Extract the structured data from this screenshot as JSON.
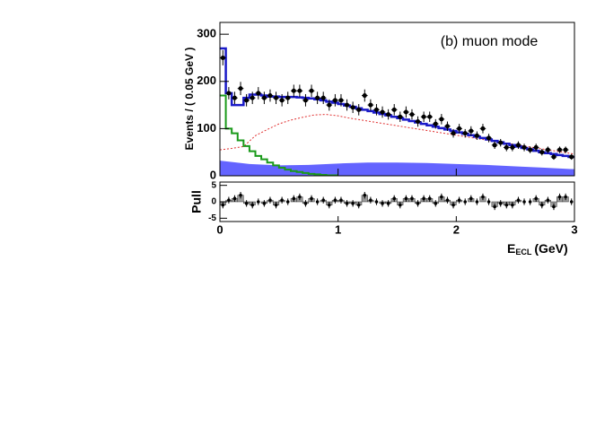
{
  "chart_data": {
    "type": "fit-histogram",
    "annotation": "(b) muon mode",
    "y_label": "Events / ( 0.05 GeV )",
    "x_label": {
      "main": "E",
      "sub": "ECL",
      "unit": "(GeV)"
    },
    "pull_label": "Pull",
    "xlim": [
      0,
      3
    ],
    "xticks": [
      0,
      1,
      2,
      3
    ],
    "ylim": [
      0,
      325
    ],
    "yticks": [
      0,
      100,
      200,
      300
    ],
    "pull_ylim": [
      -6,
      6
    ],
    "pull_yticks": [
      -5,
      0,
      5
    ],
    "x": [
      0.025,
      0.075,
      0.125,
      0.175,
      0.225,
      0.275,
      0.325,
      0.375,
      0.425,
      0.475,
      0.525,
      0.575,
      0.625,
      0.675,
      0.725,
      0.775,
      0.825,
      0.875,
      0.925,
      0.975,
      1.025,
      1.075,
      1.125,
      1.175,
      1.225,
      1.275,
      1.325,
      1.375,
      1.425,
      1.475,
      1.525,
      1.575,
      1.625,
      1.675,
      1.725,
      1.775,
      1.825,
      1.875,
      1.925,
      1.975,
      2.025,
      2.075,
      2.125,
      2.175,
      2.225,
      2.275,
      2.325,
      2.375,
      2.425,
      2.475,
      2.525,
      2.575,
      2.625,
      2.675,
      2.725,
      2.775,
      2.825,
      2.875,
      2.925,
      2.975
    ],
    "data": {
      "color": "#000000",
      "values": [
        250,
        175,
        165,
        185,
        160,
        165,
        175,
        165,
        170,
        165,
        160,
        165,
        180,
        180,
        160,
        180,
        165,
        165,
        150,
        160,
        160,
        150,
        145,
        140,
        170,
        150,
        140,
        135,
        130,
        140,
        125,
        135,
        130,
        115,
        125,
        125,
        110,
        120,
        105,
        90,
        100,
        90,
        95,
        85,
        100,
        80,
        65,
        70,
        60,
        60,
        65,
        60,
        55,
        60,
        50,
        55,
        40,
        55,
        55,
        40
      ],
      "errors": [
        16,
        13,
        13,
        14,
        13,
        13,
        13,
        13,
        13,
        13,
        13,
        13,
        13,
        13,
        13,
        13,
        13,
        13,
        12,
        13,
        13,
        12,
        12,
        12,
        13,
        12,
        12,
        12,
        11,
        12,
        11,
        12,
        11,
        11,
        11,
        11,
        10,
        11,
        10,
        9,
        10,
        9,
        10,
        9,
        10,
        9,
        8,
        8,
        8,
        8,
        8,
        8,
        7,
        8,
        7,
        7,
        6,
        7,
        7,
        6
      ]
    },
    "total": {
      "color": "#1a1ac8",
      "values": [
        270,
        175,
        150,
        150,
        165,
        172,
        172,
        170,
        168,
        168,
        167,
        167,
        167,
        166,
        165,
        164,
        162,
        160,
        157,
        155,
        152,
        149,
        146,
        143,
        140,
        137,
        134,
        131,
        128,
        125,
        122,
        119,
        116,
        113,
        110,
        107,
        104,
        101,
        98,
        95,
        92,
        89,
        86,
        83,
        80,
        77,
        74,
        71,
        68,
        65,
        62,
        59,
        56,
        53,
        50,
        48,
        46,
        44,
        42,
        40
      ]
    },
    "peaking": {
      "color": "#1a9a1a",
      "x": [
        0.025,
        0.075,
        0.125,
        0.175,
        0.225,
        0.275,
        0.325,
        0.375,
        0.425,
        0.475,
        0.525,
        0.575,
        0.625,
        0.675,
        0.725,
        0.775,
        0.825,
        0.875,
        0.925,
        0.975
      ],
      "values": [
        170,
        100,
        90,
        75,
        63,
        52,
        42,
        35,
        28,
        22,
        17,
        13,
        10,
        8,
        6,
        4,
        3,
        2,
        1,
        1
      ]
    },
    "dashed": {
      "color": "#e03030",
      "x": [
        0,
        0.1,
        0.2,
        0.3,
        0.4,
        0.5,
        0.6,
        0.7,
        0.8,
        0.9,
        1.0,
        1.1,
        1.2,
        1.3,
        1.4,
        1.5,
        1.6,
        1.7,
        1.8,
        1.9,
        2.0,
        2.1,
        2.2,
        2.3,
        2.4,
        2.5,
        2.6,
        2.7,
        2.8,
        2.9,
        3.0
      ],
      "values": [
        55,
        58,
        62,
        85,
        98,
        110,
        118,
        124,
        129,
        130,
        127,
        122,
        118,
        114,
        110,
        106,
        102,
        98,
        94,
        90,
        86,
        82,
        78,
        74,
        70,
        66,
        62,
        58,
        54,
        50,
        46
      ]
    },
    "filled": {
      "color": "#6464ff",
      "x": [
        0,
        0.25,
        0.5,
        0.75,
        1.0,
        1.25,
        1.5,
        1.75,
        2.0,
        2.25,
        2.5,
        2.75,
        3.0
      ],
      "values": [
        32,
        25,
        22,
        23,
        26,
        28,
        28,
        27,
        25,
        23,
        20,
        17,
        14
      ]
    },
    "pull": {
      "color": "#999999",
      "values": [
        -1,
        0.5,
        1,
        2,
        -0.5,
        -1,
        0,
        -0.5,
        0.5,
        -1,
        0.5,
        0,
        1,
        1.5,
        -0.5,
        1,
        0,
        0.5,
        -1,
        0.5,
        0.5,
        -0.5,
        -0.5,
        -1,
        2,
        0.5,
        0,
        -0.5,
        -0.5,
        1,
        -1,
        1,
        1,
        -0.5,
        1,
        1,
        -0.5,
        1.5,
        0.5,
        -1,
        0.5,
        0,
        1,
        0,
        1.5,
        0,
        -1.5,
        -0.5,
        -1,
        -1,
        0.5,
        0,
        0,
        1,
        -1,
        0.5,
        -1.5,
        1.5,
        1.5,
        0
      ]
    }
  }
}
